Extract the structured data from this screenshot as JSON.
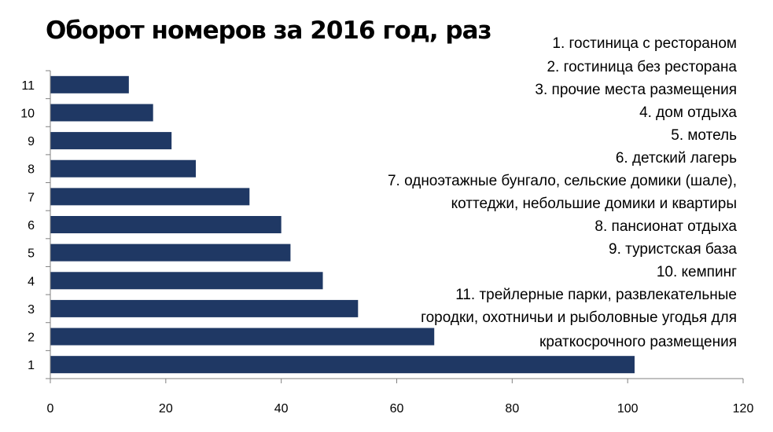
{
  "chart_data": {
    "type": "bar",
    "orientation": "horizontal",
    "title": "Оборот номеров за 2016 год, раз",
    "categories": [
      "1",
      "2",
      "3",
      "4",
      "5",
      "6",
      "7",
      "8",
      "9",
      "10",
      "11"
    ],
    "values": [
      101.2,
      66.5,
      53.3,
      47.2,
      41.6,
      40.0,
      34.5,
      25.2,
      21.0,
      17.8,
      13.6
    ],
    "xlim": [
      0,
      120
    ],
    "xticks": [
      "0",
      "20",
      "40",
      "60",
      "80",
      "100",
      "120"
    ],
    "xlabel": "",
    "ylabel": "",
    "grid": false,
    "bar_color": "#1f3864",
    "legend_position": "top-right",
    "legend": [
      "1. гостиница с рестораном",
      "2. гостиница без ресторана",
      "3. прочие места размещения",
      "4. дом отдыха",
      "5. мотель",
      "6. детский лагерь",
      "7. одноэтажные бунгало, сельские домики (шале),",
      "коттеджи, небольшие домики и квартиры",
      "8. пансионат отдыха",
      "9. туристская база",
      "10. кемпинг",
      "11. трейлерные парки, развлекательные",
      "городки, охотничьи и рыболовные  угодья для",
      "краткосрочного размещения"
    ]
  }
}
